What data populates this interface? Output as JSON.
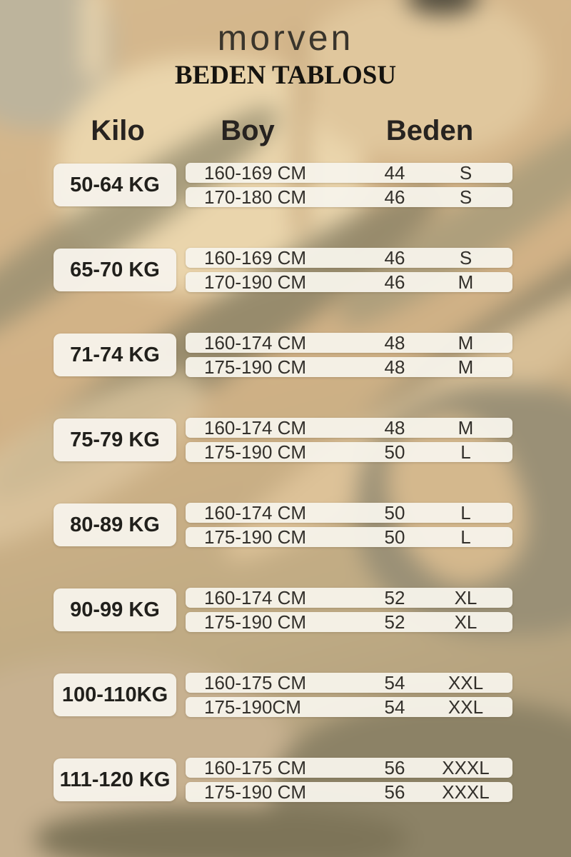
{
  "brand": "morven",
  "title": "BEDEN TABLOSU",
  "table": {
    "headers": {
      "kilo": "Kilo",
      "boy": "Boy",
      "beden": "Beden"
    },
    "groups": [
      {
        "kilo": "50-64 KG",
        "rows": [
          {
            "boy": "160-169 CM",
            "size_number": "44",
            "size_letter": "S"
          },
          {
            "boy": "170-180 CM",
            "size_number": "46",
            "size_letter": "S"
          }
        ]
      },
      {
        "kilo": "65-70 KG",
        "rows": [
          {
            "boy": "160-169 CM",
            "size_number": "46",
            "size_letter": "S"
          },
          {
            "boy": "170-190 CM",
            "size_number": "46",
            "size_letter": "M"
          }
        ]
      },
      {
        "kilo": "71-74 KG",
        "rows": [
          {
            "boy": "160-174 CM",
            "size_number": "48",
            "size_letter": "M"
          },
          {
            "boy": "175-190 CM",
            "size_number": "48",
            "size_letter": "M"
          }
        ]
      },
      {
        "kilo": "75-79 KG",
        "rows": [
          {
            "boy": "160-174 CM",
            "size_number": "48",
            "size_letter": "M"
          },
          {
            "boy": "175-190 CM",
            "size_number": "50",
            "size_letter": "L"
          }
        ]
      },
      {
        "kilo": "80-89 KG",
        "rows": [
          {
            "boy": "160-174 CM",
            "size_number": "50",
            "size_letter": "L"
          },
          {
            "boy": "175-190 CM",
            "size_number": "50",
            "size_letter": "L"
          }
        ]
      },
      {
        "kilo": "90-99 KG",
        "rows": [
          {
            "boy": "160-174 CM",
            "size_number": "52",
            "size_letter": "XL"
          },
          {
            "boy": "175-190 CM",
            "size_number": "52",
            "size_letter": "XL"
          }
        ]
      },
      {
        "kilo": "100-110KG",
        "rows": [
          {
            "boy": "160-175 CM",
            "size_number": "54",
            "size_letter": "XXL"
          },
          {
            "boy": "175-190CM",
            "size_number": "54",
            "size_letter": "XXL"
          }
        ]
      },
      {
        "kilo": "111-120 KG",
        "rows": [
          {
            "boy": "160-175 CM",
            "size_number": "56",
            "size_letter": "XXXL"
          },
          {
            "boy": "175-190 CM",
            "size_number": "56",
            "size_letter": "XXXL"
          }
        ]
      }
    ]
  },
  "chart_data": {
    "type": "table",
    "title": "BEDEN TABLOSU",
    "brand": "morven",
    "columns": [
      "Kilo",
      "Boy",
      "Beden (number)",
      "Beden (letter)"
    ],
    "rows": [
      [
        "50-64 KG",
        "160-169 CM",
        44,
        "S"
      ],
      [
        "50-64 KG",
        "170-180 CM",
        46,
        "S"
      ],
      [
        "65-70 KG",
        "160-169 CM",
        46,
        "S"
      ],
      [
        "65-70 KG",
        "170-190 CM",
        46,
        "M"
      ],
      [
        "71-74 KG",
        "160-174 CM",
        48,
        "M"
      ],
      [
        "71-74 KG",
        "175-190 CM",
        48,
        "M"
      ],
      [
        "75-79 KG",
        "160-174 CM",
        48,
        "M"
      ],
      [
        "75-79 KG",
        "175-190 CM",
        50,
        "L"
      ],
      [
        "80-89 KG",
        "160-174 CM",
        50,
        "L"
      ],
      [
        "80-89 KG",
        "175-190 CM",
        50,
        "L"
      ],
      [
        "90-99 KG",
        "160-174 CM",
        52,
        "XL"
      ],
      [
        "90-99 KG",
        "175-190 CM",
        52,
        "XL"
      ],
      [
        "100-110KG",
        "160-175 CM",
        54,
        "XXL"
      ],
      [
        "100-110KG",
        "175-190CM",
        54,
        "XXL"
      ],
      [
        "111-120 KG",
        "160-175 CM",
        56,
        "XXXL"
      ],
      [
        "111-120 KG",
        "175-190 CM",
        56,
        "XXXL"
      ]
    ],
    "layout": {
      "grid": false,
      "row_strips": "two height rows per weight group"
    }
  },
  "colors": {
    "background_tan": "#cdb189",
    "background_olive": "#8d8467",
    "strip_background": "#f6f2e9",
    "text_dark": "#21201c",
    "title_dark": "#15130f"
  }
}
